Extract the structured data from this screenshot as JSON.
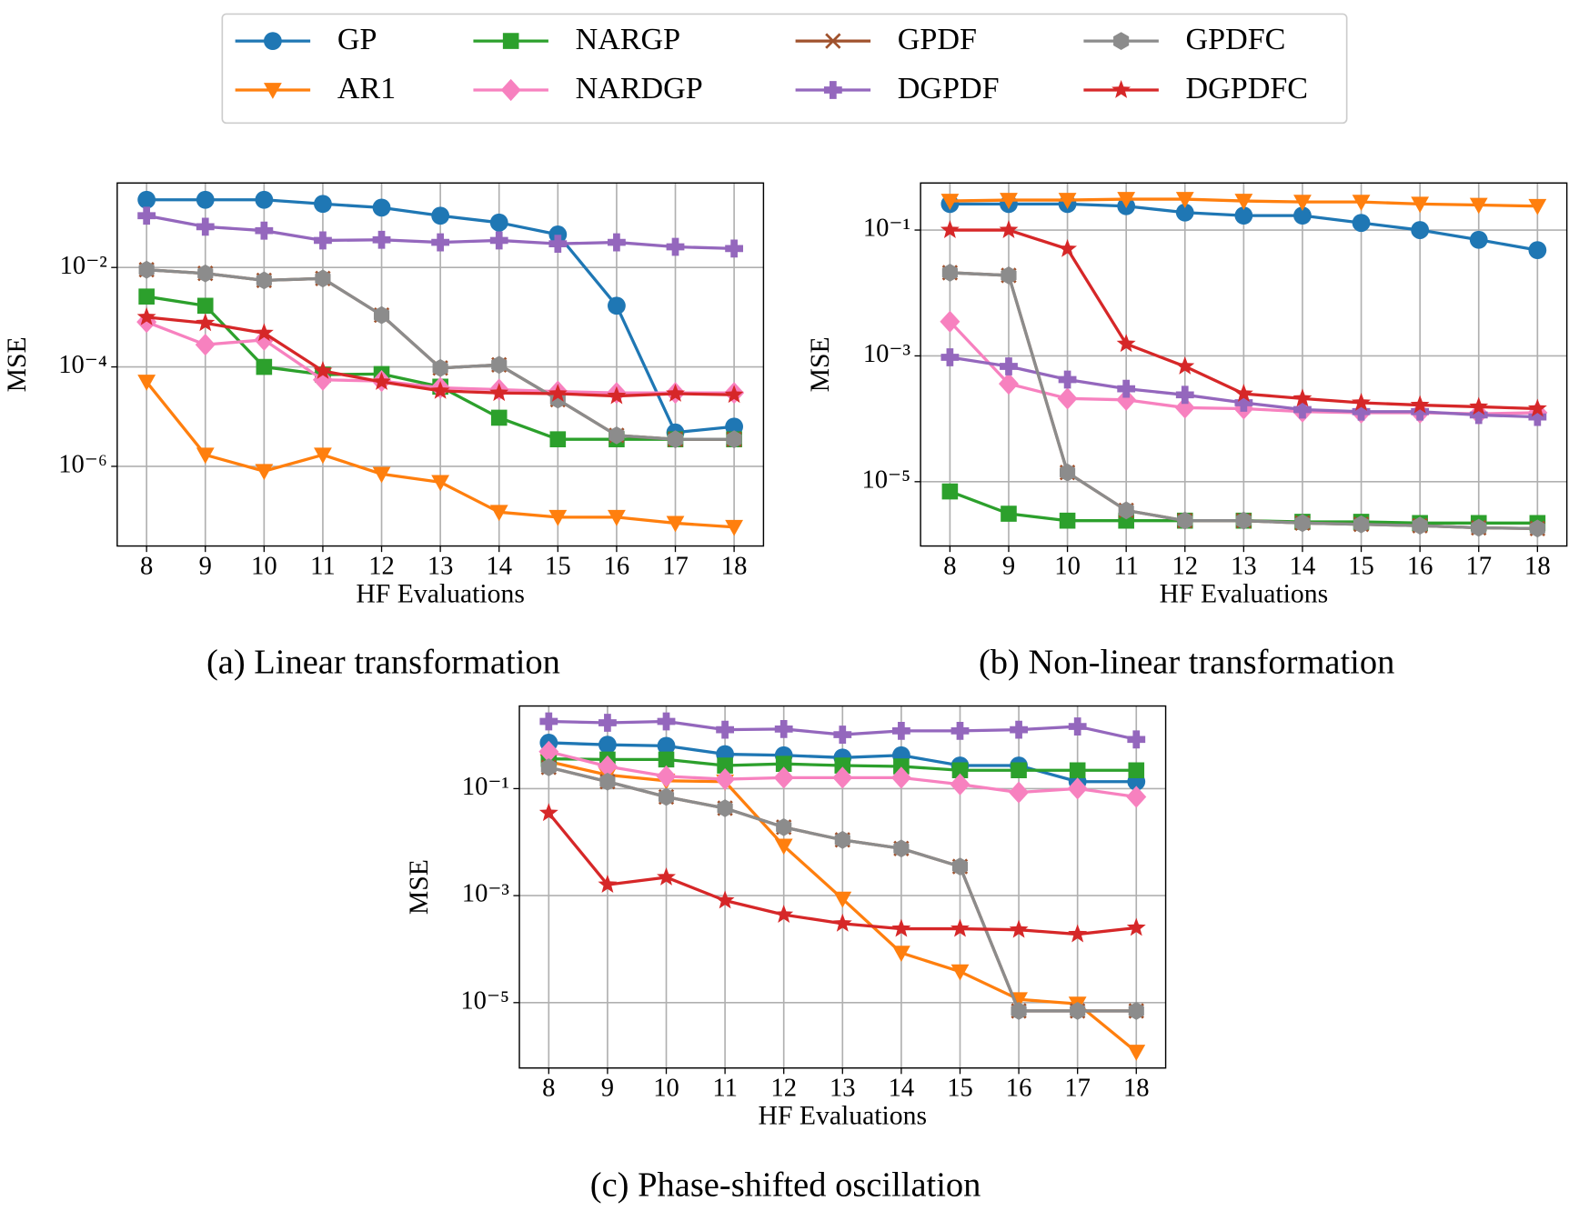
{
  "legend": {
    "ncol": 4
  },
  "chart_data": [
    {
      "type": "line",
      "title": "(a) Linear transformation",
      "xlabel": "HF Evaluations",
      "ylabel": "MSE",
      "yscale": "log",
      "grid": true,
      "x": [
        8,
        9,
        10,
        11,
        12,
        13,
        14,
        15,
        16,
        17,
        18
      ],
      "xlim": [
        7.5,
        18.5
      ],
      "xticks": [
        8,
        9,
        10,
        11,
        12,
        13,
        14,
        15,
        16,
        17,
        18
      ],
      "ylim": [
        2.5e-08,
        0.5
      ],
      "yticks": [
        {
          "value": 1e-06,
          "label": "10⁻⁶"
        },
        {
          "value": 0.0001,
          "label": "10⁻⁴"
        },
        {
          "value": 0.01,
          "label": "10⁻²"
        }
      ],
      "series": [
        {
          "name": "GP",
          "color": "#1f77b4",
          "marker": "o",
          "values": [
            0.23,
            0.23,
            0.23,
            0.19,
            0.16,
            0.11,
            0.08,
            0.046,
            0.0017,
            4.8e-06,
            6.3e-06
          ]
        },
        {
          "name": "AR1",
          "color": "#ff7f0e",
          "marker": "v",
          "values": [
            5e-05,
            1.7e-06,
            8e-07,
            1.7e-06,
            7e-07,
            4.8e-07,
            1.2e-07,
            9.5e-08,
            9.5e-08,
            7.2e-08,
            6e-08
          ]
        },
        {
          "name": "NARGP",
          "color": "#2ca02c",
          "marker": "s",
          "values": [
            0.0026,
            0.0017,
            0.0001,
            7e-05,
            7.2e-05,
            4e-05,
            9.5e-06,
            3.5e-06,
            3.5e-06,
            3.5e-06,
            3.5e-06
          ]
        },
        {
          "name": "NARDGP",
          "color": "#f781bf",
          "marker": "D",
          "values": [
            0.0008,
            0.00028,
            0.00035,
            5.5e-05,
            5.2e-05,
            3.8e-05,
            3.5e-05,
            3.2e-05,
            3e-05,
            3e-05,
            3e-05
          ]
        },
        {
          "name": "GPDF",
          "color": "#a0522d",
          "marker": "x",
          "values": [
            0.009,
            0.0076,
            0.0055,
            0.006,
            0.0011,
            9.5e-05,
            0.00011,
            2.2e-05,
            4.2e-06,
            3.5e-06,
            3.5e-06
          ]
        },
        {
          "name": "DGPDF",
          "color": "#9467bd",
          "marker": "P",
          "values": [
            0.11,
            0.066,
            0.055,
            0.035,
            0.036,
            0.032,
            0.035,
            0.03,
            0.032,
            0.026,
            0.024
          ]
        },
        {
          "name": "GPDFC",
          "color": "#8c8c8c",
          "marker": "h",
          "values": [
            0.009,
            0.0076,
            0.0055,
            0.006,
            0.0011,
            9.5e-05,
            0.00011,
            2.2e-05,
            4.2e-06,
            3.5e-06,
            3.5e-06
          ]
        },
        {
          "name": "DGPDFC",
          "color": "#d62728",
          "marker": "*",
          "values": [
            0.001,
            0.00076,
            0.00048,
            8.3e-05,
            5e-05,
            3.3e-05,
            3e-05,
            2.9e-05,
            2.6e-05,
            2.9e-05,
            2.75e-05
          ]
        }
      ]
    },
    {
      "type": "line",
      "title": "(b) Non-linear transformation",
      "xlabel": "HF Evaluations",
      "ylabel": "MSE",
      "yscale": "log",
      "grid": true,
      "x": [
        8,
        9,
        10,
        11,
        12,
        13,
        14,
        15,
        16,
        17,
        18
      ],
      "xlim": [
        7.5,
        18.5
      ],
      "xticks": [
        8,
        9,
        10,
        11,
        12,
        13,
        14,
        15,
        16,
        17,
        18
      ],
      "ylim": [
        9.5e-07,
        0.56
      ],
      "yticks": [
        {
          "value": 1e-05,
          "label": "10⁻⁵"
        },
        {
          "value": 0.001,
          "label": "10⁻³"
        },
        {
          "value": 0.1,
          "label": "10⁻¹"
        }
      ],
      "series": [
        {
          "name": "GP",
          "color": "#1f77b4",
          "marker": "o",
          "values": [
            0.26,
            0.26,
            0.26,
            0.24,
            0.19,
            0.17,
            0.17,
            0.13,
            0.1,
            0.07,
            0.048
          ]
        },
        {
          "name": "AR1",
          "color": "#ff7f0e",
          "marker": "v",
          "values": [
            0.29,
            0.3,
            0.3,
            0.31,
            0.31,
            0.29,
            0.28,
            0.28,
            0.26,
            0.25,
            0.24
          ]
        },
        {
          "name": "NARGP",
          "color": "#2ca02c",
          "marker": "s",
          "values": [
            7e-06,
            3.1e-06,
            2.4e-06,
            2.4e-06,
            2.4e-06,
            2.4e-06,
            2.3e-06,
            2.3e-06,
            2.2e-06,
            2.2e-06,
            2.2e-06
          ]
        },
        {
          "name": "NARDGP",
          "color": "#f781bf",
          "marker": "D",
          "values": [
            0.0035,
            0.00036,
            0.00021,
            0.0002,
            0.00015,
            0.000145,
            0.00013,
            0.000125,
            0.000125,
            0.00012,
            0.000125
          ]
        },
        {
          "name": "GPDF",
          "color": "#a0522d",
          "marker": "x",
          "values": [
            0.021,
            0.019,
            1.4e-05,
            3.5e-06,
            2.4e-06,
            2.4e-06,
            2.2e-06,
            2.1e-06,
            2e-06,
            1.85e-06,
            1.8e-06
          ]
        },
        {
          "name": "DGPDF",
          "color": "#9467bd",
          "marker": "P",
          "values": [
            0.00095,
            0.00068,
            0.00042,
            0.0003,
            0.00024,
            0.00018,
            0.00014,
            0.00013,
            0.00013,
            0.000115,
            0.000107
          ]
        },
        {
          "name": "GPDFC",
          "color": "#8c8c8c",
          "marker": "h",
          "values": [
            0.021,
            0.019,
            1.4e-05,
            3.5e-06,
            2.4e-06,
            2.4e-06,
            2.2e-06,
            2.1e-06,
            2e-06,
            1.85e-06,
            1.8e-06
          ]
        },
        {
          "name": "DGPDFC",
          "color": "#d62728",
          "marker": "*",
          "values": [
            0.1,
            0.1,
            0.05,
            0.00155,
            0.00068,
            0.00025,
            0.00021,
            0.00018,
            0.000165,
            0.000155,
            0.000145
          ]
        }
      ]
    },
    {
      "type": "line",
      "title": "(c) Phase-shifted oscillation",
      "xlabel": "HF Evaluations",
      "ylabel": "MSE",
      "yscale": "log",
      "grid": true,
      "x": [
        8,
        9,
        10,
        11,
        12,
        13,
        14,
        15,
        16,
        17,
        18
      ],
      "xlim": [
        7.5,
        18.5
      ],
      "xticks": [
        8,
        9,
        10,
        11,
        12,
        13,
        14,
        15,
        16,
        17,
        18
      ],
      "ylim": [
        6e-07,
        3.5
      ],
      "yticks": [
        {
          "value": 1e-05,
          "label": "10⁻⁵"
        },
        {
          "value": 0.001,
          "label": "10⁻³"
        },
        {
          "value": 0.1,
          "label": "10⁻¹"
        }
      ],
      "series": [
        {
          "name": "GP",
          "color": "#1f77b4",
          "marker": "o",
          "values": [
            0.72,
            0.66,
            0.63,
            0.44,
            0.42,
            0.38,
            0.42,
            0.27,
            0.27,
            0.135,
            0.135
          ]
        },
        {
          "name": "AR1",
          "color": "#ff7f0e",
          "marker": "v",
          "values": [
            0.32,
            0.18,
            0.14,
            0.135,
            0.0085,
            0.00087,
            8.5e-05,
            3.8e-05,
            1.15e-05,
            9.5e-06,
            1.2e-06
          ]
        },
        {
          "name": "NARGP",
          "color": "#2ca02c",
          "marker": "s",
          "values": [
            0.36,
            0.35,
            0.35,
            0.27,
            0.29,
            0.27,
            0.26,
            0.22,
            0.22,
            0.22,
            0.22
          ]
        },
        {
          "name": "NARDGP",
          "color": "#f781bf",
          "marker": "D",
          "values": [
            0.49,
            0.26,
            0.17,
            0.15,
            0.16,
            0.16,
            0.16,
            0.12,
            0.085,
            0.1,
            0.07
          ]
        },
        {
          "name": "GPDF",
          "color": "#a0522d",
          "marker": "x",
          "values": [
            0.25,
            0.135,
            0.07,
            0.043,
            0.019,
            0.011,
            0.0076,
            0.0035,
            7e-06,
            7e-06,
            7e-06
          ]
        },
        {
          "name": "DGPDF",
          "color": "#9467bd",
          "marker": "P",
          "values": [
            1.8,
            1.7,
            1.8,
            1.26,
            1.3,
            1.02,
            1.2,
            1.2,
            1.26,
            1.45,
            0.83
          ]
        },
        {
          "name": "GPDFC",
          "color": "#8c8c8c",
          "marker": "h",
          "values": [
            0.25,
            0.135,
            0.07,
            0.043,
            0.019,
            0.011,
            0.0076,
            0.0035,
            7e-06,
            7e-06,
            7e-06
          ]
        },
        {
          "name": "DGPDFC",
          "color": "#d62728",
          "marker": "*",
          "values": [
            0.035,
            0.0016,
            0.0022,
            0.00081,
            0.00044,
            0.0003,
            0.00024,
            0.00024,
            0.00023,
            0.00019,
            0.00025
          ]
        }
      ]
    }
  ]
}
